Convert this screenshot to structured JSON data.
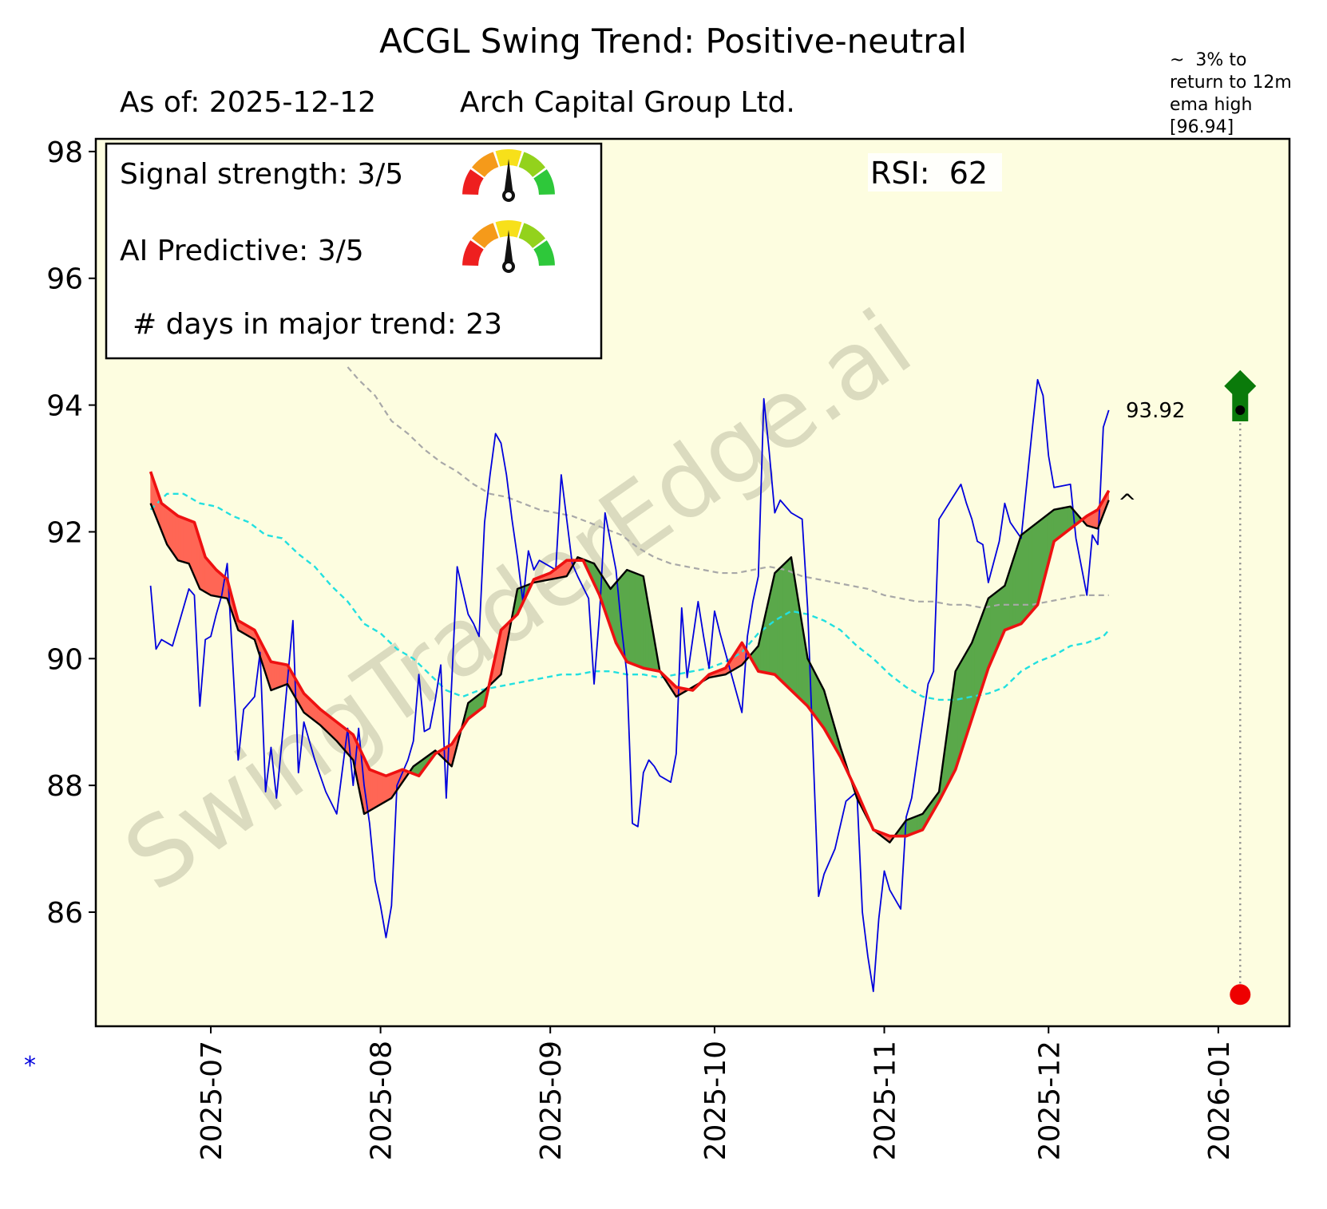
{
  "chart_data": {
    "type": "line",
    "title": "ACGL  Swing Trend: Positive-neutral",
    "subtitle_date": "As of: 2025-12-12",
    "subtitle_company": "Arch Capital Group Ltd.",
    "watermark": "SwingTraderEdge.ai",
    "ylim": [
      84.2,
      98.2
    ],
    "yticks": [
      86,
      88,
      90,
      92,
      94,
      96,
      98
    ],
    "xlim": [
      "2025-06-10",
      "2026-01-14"
    ],
    "xticks": [
      "2025-07",
      "2025-08",
      "2025-09",
      "2025-10",
      "2025-11",
      "2025-12",
      "2026-01"
    ],
    "info_box": {
      "signal_strength": "Signal strength: 3/5",
      "ai_predictive": "AI Predictive: 3/5",
      "days_in_trend": "# days in major trend: 23",
      "signal_gauge_value": 3,
      "ai_gauge_value": 3,
      "gauge_max": 5
    },
    "rsi_label": "RSI:  62",
    "target_annotation": "~  3% to\nreturn to 12m\nema high\n[96.94]",
    "last_price_label": "93.92",
    "last_price": 93.92,
    "target_price": 94.3,
    "low_marker_price": 84.7,
    "marker_date": "2026-01-05",
    "caret_label": "^",
    "asterisk_label": "*",
    "colors": {
      "background": "#fdfde0",
      "price": "#0000dd",
      "fast_ema": "#000000",
      "slow_ema": "#ee1111",
      "bull_fill": "#5aa84a",
      "bear_fill": "#ff6655",
      "ema_mid": "#22e0e0",
      "ema_long": "#a8a8a8",
      "target_arrow": "#0a7a0a",
      "low_marker": "#ee0000"
    },
    "series": [
      {
        "name": "Price",
        "dates": [
          "2025-06-20",
          "2025-06-21",
          "2025-06-22",
          "2025-06-23",
          "2025-06-24",
          "2025-06-26",
          "2025-06-27",
          "2025-06-28",
          "2025-06-29",
          "2025-06-30",
          "2025-07-01",
          "2025-07-02",
          "2025-07-03",
          "2025-07-04",
          "2025-07-06",
          "2025-07-07",
          "2025-07-08",
          "2025-07-09",
          "2025-07-10",
          "2025-07-11",
          "2025-07-12",
          "2025-07-13",
          "2025-07-14",
          "2025-07-16",
          "2025-07-17",
          "2025-07-18",
          "2025-07-19",
          "2025-07-20",
          "2025-07-22",
          "2025-07-24",
          "2025-07-26",
          "2025-07-27",
          "2025-07-28",
          "2025-07-29",
          "2025-07-30",
          "2025-07-31",
          "2025-08-01",
          "2025-08-02",
          "2025-08-03",
          "2025-08-04",
          "2025-08-05",
          "2025-08-06",
          "2025-08-07",
          "2025-08-08",
          "2025-08-09",
          "2025-08-10",
          "2025-08-11",
          "2025-08-12",
          "2025-08-13",
          "2025-08-15",
          "2025-08-17",
          "2025-08-18",
          "2025-08-19",
          "2025-08-20",
          "2025-08-21",
          "2025-08-22",
          "2025-08-23",
          "2025-08-24",
          "2025-08-25",
          "2025-08-26",
          "2025-08-27",
          "2025-08-28",
          "2025-08-29",
          "2025-08-30",
          "2025-09-01",
          "2025-09-02",
          "2025-09-03",
          "2025-09-04",
          "2025-09-05",
          "2025-09-06",
          "2025-09-08",
          "2025-09-09",
          "2025-09-10",
          "2025-09-11",
          "2025-09-13",
          "2025-09-14",
          "2025-09-15",
          "2025-09-16",
          "2025-09-17",
          "2025-09-18",
          "2025-09-19",
          "2025-09-20",
          "2025-09-21",
          "2025-09-23",
          "2025-09-24",
          "2025-09-25",
          "2025-09-26",
          "2025-09-27",
          "2025-09-28",
          "2025-09-29",
          "2025-09-30",
          "2025-10-01",
          "2025-10-02",
          "2025-10-06",
          "2025-10-07",
          "2025-10-08",
          "2025-10-09",
          "2025-10-10",
          "2025-10-11",
          "2025-10-12",
          "2025-10-13",
          "2025-10-14",
          "2025-10-15",
          "2025-10-16",
          "2025-10-17",
          "2025-10-18",
          "2025-10-20",
          "2025-10-21",
          "2025-10-22",
          "2025-10-23",
          "2025-10-25",
          "2025-10-27",
          "2025-10-28",
          "2025-10-29",
          "2025-10-30",
          "2025-10-31",
          "2025-11-01",
          "2025-11-02",
          "2025-11-03",
          "2025-11-04",
          "2025-11-05",
          "2025-11-06",
          "2025-11-09",
          "2025-11-10",
          "2025-11-11",
          "2025-11-15",
          "2025-11-16",
          "2025-11-17",
          "2025-11-18",
          "2025-11-19",
          "2025-11-20",
          "2025-11-22",
          "2025-11-23",
          "2025-11-24",
          "2025-11-26",
          "2025-11-28",
          "2025-11-29",
          "2025-11-30",
          "2025-12-01",
          "2025-12-02",
          "2025-12-05",
          "2025-12-06",
          "2025-12-07",
          "2025-12-08",
          "2025-12-09",
          "2025-12-10",
          "2025-12-11",
          "2025-12-12"
        ],
        "values": [
          91.15,
          90.15,
          90.3,
          90.25,
          90.2,
          90.8,
          91.1,
          91.0,
          89.25,
          90.3,
          90.35,
          90.7,
          91.0,
          91.5,
          88.4,
          89.2,
          89.3,
          89.4,
          90.1,
          87.9,
          88.6,
          87.8,
          88.7,
          90.6,
          88.2,
          89.0,
          88.7,
          88.4,
          87.9,
          87.55,
          88.9,
          88.0,
          88.9,
          88.0,
          87.4,
          86.5,
          86.1,
          85.6,
          86.1,
          88.0,
          88.2,
          88.4,
          88.7,
          89.75,
          88.85,
          88.9,
          89.35,
          89.9,
          87.8,
          91.45,
          90.7,
          90.55,
          90.35,
          92.15,
          92.9,
          93.55,
          93.4,
          92.9,
          92.2,
          91.6,
          90.9,
          91.7,
          91.4,
          91.55,
          91.45,
          91.4,
          92.9,
          92.2,
          91.5,
          91.3,
          90.95,
          89.6,
          90.7,
          92.3,
          91.4,
          90.5,
          89.75,
          87.4,
          87.35,
          88.2,
          88.4,
          88.3,
          88.15,
          88.05,
          88.5,
          90.8,
          89.7,
          90.3,
          90.9,
          90.35,
          89.85,
          90.75,
          90.4,
          89.15,
          90.35,
          90.9,
          91.3,
          94.1,
          93.25,
          92.3,
          92.5,
          92.4,
          92.3,
          92.25,
          92.2,
          90.8,
          86.25,
          86.6,
          86.8,
          87.0,
          87.75,
          87.9,
          86.0,
          85.3,
          84.75,
          85.9,
          86.65,
          86.35,
          86.2,
          86.05,
          87.5,
          87.8,
          89.6,
          89.8,
          92.2,
          92.75,
          92.45,
          92.2,
          91.85,
          91.8,
          91.2,
          91.85,
          92.45,
          92.15,
          91.9,
          93.6,
          94.4,
          94.15,
          93.2,
          92.7,
          92.75,
          91.9,
          91.45,
          91.0,
          91.95,
          91.8,
          93.65,
          93.92
        ]
      },
      {
        "name": "Fast EMA",
        "dates": [
          "2025-06-20",
          "2025-06-23",
          "2025-06-25",
          "2025-06-27",
          "2025-06-29",
          "2025-07-01",
          "2025-07-04",
          "2025-07-06",
          "2025-07-09",
          "2025-07-12",
          "2025-07-15",
          "2025-07-18",
          "2025-07-21",
          "2025-07-24",
          "2025-07-27",
          "2025-07-29",
          "2025-07-31",
          "2025-08-03",
          "2025-08-07",
          "2025-08-11",
          "2025-08-14",
          "2025-08-17",
          "2025-08-20",
          "2025-08-23",
          "2025-08-26",
          "2025-08-29",
          "2025-09-01",
          "2025-09-04",
          "2025-09-06",
          "2025-09-09",
          "2025-09-12",
          "2025-09-15",
          "2025-09-18",
          "2025-09-21",
          "2025-09-24",
          "2025-09-27",
          "2025-09-30",
          "2025-10-03",
          "2025-10-06",
          "2025-10-09",
          "2025-10-12",
          "2025-10-15",
          "2025-10-18",
          "2025-10-21",
          "2025-10-24",
          "2025-10-27",
          "2025-10-30",
          "2025-11-02",
          "2025-11-05",
          "2025-11-08",
          "2025-11-11",
          "2025-11-14",
          "2025-11-17",
          "2025-11-20",
          "2025-11-23",
          "2025-11-26",
          "2025-11-29",
          "2025-12-02",
          "2025-12-05",
          "2025-12-08",
          "2025-12-10",
          "2025-12-12"
        ],
        "values": [
          92.45,
          91.8,
          91.55,
          91.5,
          91.1,
          91.0,
          90.95,
          90.45,
          90.3,
          89.5,
          89.6,
          89.15,
          88.95,
          88.7,
          88.4,
          87.55,
          87.65,
          87.8,
          88.3,
          88.55,
          88.3,
          89.3,
          89.5,
          89.75,
          91.1,
          91.2,
          91.25,
          91.3,
          91.6,
          91.5,
          91.1,
          91.4,
          91.3,
          89.8,
          89.4,
          89.55,
          89.7,
          89.75,
          89.9,
          90.2,
          91.35,
          91.6,
          90.0,
          89.5,
          88.6,
          87.8,
          87.3,
          87.1,
          87.45,
          87.55,
          87.9,
          89.8,
          90.25,
          90.95,
          91.15,
          91.95,
          92.15,
          92.35,
          92.4,
          92.1,
          92.05,
          92.5
        ]
      },
      {
        "name": "Slow EMA",
        "dates": [
          "2025-06-20",
          "2025-06-22",
          "2025-06-25",
          "2025-06-28",
          "2025-06-30",
          "2025-07-02",
          "2025-07-04",
          "2025-07-06",
          "2025-07-09",
          "2025-07-12",
          "2025-07-15",
          "2025-07-18",
          "2025-07-21",
          "2025-07-24",
          "2025-07-27",
          "2025-07-30",
          "2025-08-02",
          "2025-08-05",
          "2025-08-08",
          "2025-08-11",
          "2025-08-14",
          "2025-08-17",
          "2025-08-20",
          "2025-08-23",
          "2025-08-26",
          "2025-08-29",
          "2025-09-01",
          "2025-09-04",
          "2025-09-07",
          "2025-09-10",
          "2025-09-13",
          "2025-09-15",
          "2025-09-18",
          "2025-09-21",
          "2025-09-24",
          "2025-09-27",
          "2025-09-30",
          "2025-10-03",
          "2025-10-06",
          "2025-10-09",
          "2025-10-12",
          "2025-10-15",
          "2025-10-18",
          "2025-10-21",
          "2025-10-24",
          "2025-10-27",
          "2025-10-30",
          "2025-11-02",
          "2025-11-05",
          "2025-11-08",
          "2025-11-11",
          "2025-11-14",
          "2025-11-17",
          "2025-11-20",
          "2025-11-23",
          "2025-11-26",
          "2025-11-29",
          "2025-12-02",
          "2025-12-05",
          "2025-12-08",
          "2025-12-10",
          "2025-12-12"
        ],
        "values": [
          92.95,
          92.45,
          92.25,
          92.15,
          91.6,
          91.4,
          91.25,
          90.6,
          90.45,
          89.95,
          89.9,
          89.45,
          89.2,
          89.0,
          88.8,
          88.25,
          88.15,
          88.25,
          88.15,
          88.5,
          88.65,
          89.05,
          89.25,
          90.45,
          90.7,
          91.25,
          91.35,
          91.55,
          91.55,
          91.0,
          90.25,
          89.95,
          89.85,
          89.8,
          89.55,
          89.5,
          89.75,
          89.85,
          90.25,
          89.8,
          89.75,
          89.5,
          89.25,
          88.9,
          88.45,
          87.9,
          87.3,
          87.2,
          87.2,
          87.3,
          87.75,
          88.25,
          89.05,
          89.85,
          90.45,
          90.55,
          90.85,
          91.85,
          92.05,
          92.25,
          92.35,
          92.65
        ]
      },
      {
        "name": "Mid EMA",
        "dates": [
          "2025-06-20",
          "2025-06-23",
          "2025-06-26",
          "2025-06-29",
          "2025-07-02",
          "2025-07-05",
          "2025-07-08",
          "2025-07-11",
          "2025-07-14",
          "2025-07-17",
          "2025-07-20",
          "2025-07-23",
          "2025-07-26",
          "2025-07-29",
          "2025-08-01",
          "2025-08-04",
          "2025-08-07",
          "2025-08-10",
          "2025-08-13",
          "2025-08-16",
          "2025-08-19",
          "2025-08-22",
          "2025-08-25",
          "2025-08-28",
          "2025-08-31",
          "2025-09-03",
          "2025-09-06",
          "2025-09-09",
          "2025-09-12",
          "2025-09-15",
          "2025-09-18",
          "2025-09-21",
          "2025-09-24",
          "2025-09-27",
          "2025-09-30",
          "2025-10-03",
          "2025-10-06",
          "2025-10-09",
          "2025-10-12",
          "2025-10-15",
          "2025-10-18",
          "2025-10-21",
          "2025-10-24",
          "2025-10-27",
          "2025-10-30",
          "2025-11-02",
          "2025-11-05",
          "2025-11-08",
          "2025-11-11",
          "2025-11-14",
          "2025-11-17",
          "2025-11-20",
          "2025-11-23",
          "2025-11-26",
          "2025-11-29",
          "2025-12-02",
          "2025-12-05",
          "2025-12-08",
          "2025-12-11",
          "2025-12-12"
        ],
        "values": [
          92.35,
          92.6,
          92.6,
          92.45,
          92.4,
          92.25,
          92.15,
          91.95,
          91.9,
          91.65,
          91.45,
          91.15,
          90.9,
          90.55,
          90.4,
          90.15,
          90.0,
          89.75,
          89.5,
          89.4,
          89.5,
          89.55,
          89.6,
          89.65,
          89.7,
          89.75,
          89.75,
          89.8,
          89.8,
          89.75,
          89.75,
          89.7,
          89.75,
          89.8,
          89.85,
          89.95,
          90.1,
          90.4,
          90.6,
          90.75,
          90.7,
          90.6,
          90.45,
          90.2,
          90.0,
          89.75,
          89.55,
          89.4,
          89.35,
          89.35,
          89.4,
          89.45,
          89.55,
          89.8,
          89.95,
          90.05,
          90.2,
          90.25,
          90.35,
          90.45
        ]
      },
      {
        "name": "Long EMA",
        "dates": [
          "2025-07-26",
          "2025-07-28",
          "2025-07-31",
          "2025-08-03",
          "2025-08-06",
          "2025-08-09",
          "2025-08-12",
          "2025-08-15",
          "2025-08-18",
          "2025-08-21",
          "2025-08-24",
          "2025-08-27",
          "2025-08-30",
          "2025-09-02",
          "2025-09-05",
          "2025-09-08",
          "2025-09-11",
          "2025-09-14",
          "2025-09-17",
          "2025-09-20",
          "2025-09-23",
          "2025-09-26",
          "2025-09-29",
          "2025-10-02",
          "2025-10-05",
          "2025-10-08",
          "2025-10-11",
          "2025-10-14",
          "2025-10-17",
          "2025-10-20",
          "2025-10-23",
          "2025-10-26",
          "2025-10-29",
          "2025-11-01",
          "2025-11-04",
          "2025-11-07",
          "2025-11-10",
          "2025-11-13",
          "2025-11-16",
          "2025-11-19",
          "2025-11-22",
          "2025-11-25",
          "2025-11-28",
          "2025-12-01",
          "2025-12-04",
          "2025-12-07",
          "2025-12-10",
          "2025-12-12"
        ],
        "values": [
          94.6,
          94.4,
          94.15,
          93.75,
          93.55,
          93.3,
          93.1,
          92.95,
          92.75,
          92.6,
          92.55,
          92.45,
          92.35,
          92.3,
          92.25,
          92.15,
          92.05,
          91.95,
          91.75,
          91.6,
          91.5,
          91.45,
          91.4,
          91.35,
          91.35,
          91.4,
          91.45,
          91.4,
          91.3,
          91.25,
          91.2,
          91.15,
          91.1,
          91.0,
          90.95,
          90.9,
          90.9,
          90.85,
          90.85,
          90.8,
          90.85,
          90.85,
          90.85,
          90.9,
          90.95,
          91.0,
          91.0,
          91.0
        ]
      }
    ]
  }
}
